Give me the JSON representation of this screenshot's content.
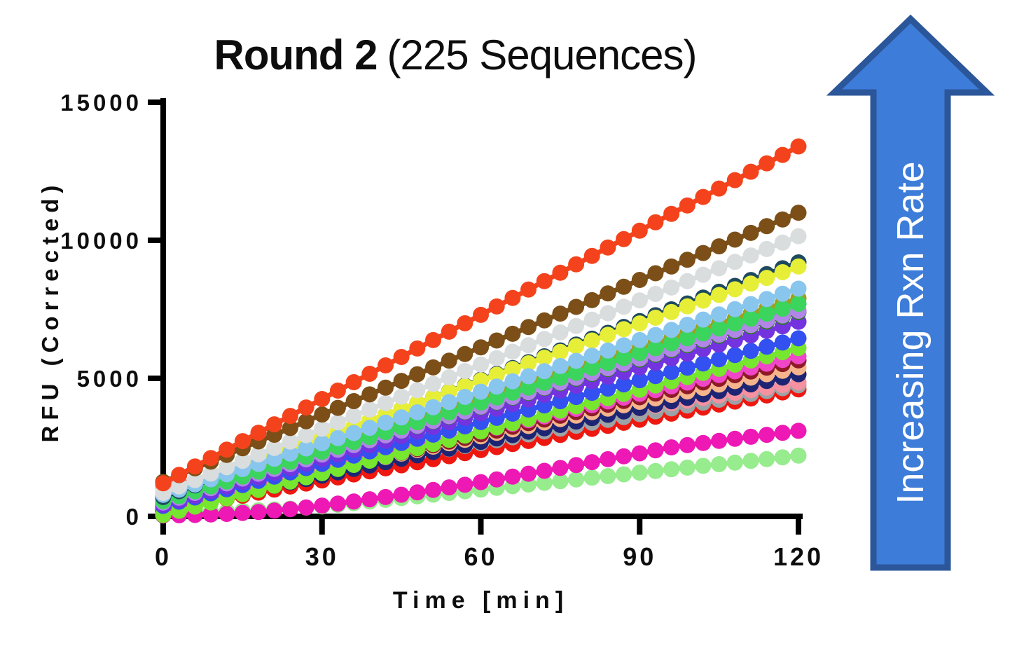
{
  "title": {
    "bold": "Round 2",
    "regular": "(225 Sequences)"
  },
  "axes": {
    "x": {
      "label": "Time [min]",
      "ticks": [
        0,
        30,
        60,
        90,
        120
      ],
      "range": [
        0,
        120
      ]
    },
    "y": {
      "label": "RFU (Corrected)",
      "ticks": [
        0,
        5000,
        10000,
        15000
      ],
      "range": [
        0,
        15000
      ]
    }
  },
  "annotation": {
    "arrow_label": "Increasing Rxn Rate",
    "arrow_fill": "#3D7CD9",
    "arrow_border": "#2B5699",
    "arrow_text_color": "#FFFFFF"
  },
  "colors": {
    "axis": "#000000",
    "background": "#FFFFFF"
  },
  "chart_data": {
    "type": "line",
    "title": "Round 2 (225 Sequences)",
    "xlabel": "Time [min]",
    "ylabel": "RFU (Corrected)",
    "xlim": [
      0,
      120
    ],
    "ylim": [
      0,
      15000
    ],
    "grid": false,
    "legend": "none",
    "marker": "circle",
    "sample_interval_min": 6,
    "source_marker_interval_min": 3,
    "x": [
      0,
      6,
      12,
      18,
      24,
      30,
      36,
      42,
      48,
      54,
      60,
      66,
      72,
      78,
      84,
      90,
      96,
      102,
      108,
      114,
      120
    ],
    "series_order_note": "array ordered slowest-to-fastest reaction rate; drawn in array order (later series on top)",
    "series": [
      {
        "name": "pale-green",
        "color": "#97EC8E",
        "values": [
          150,
          160,
          180,
          220,
          280,
          360,
          480,
          600,
          725,
          850,
          970,
          1095,
          1215,
          1340,
          1460,
          1585,
          1705,
          1830,
          1950,
          2075,
          2200
        ]
      },
      {
        "name": "magenta",
        "color": "#EE18B5",
        "values": [
          30,
          50,
          90,
          160,
          260,
          390,
          540,
          700,
          870,
          1050,
          1240,
          1440,
          1650,
          1860,
          2070,
          2285,
          2500,
          2660,
          2810,
          2955,
          3100
        ]
      },
      {
        "name": "red",
        "color": "#EE1810",
        "values": [
          200,
          420,
          640,
          860,
          1080,
          1300,
          1520,
          1740,
          1960,
          2180,
          2400,
          2620,
          2840,
          3060,
          3280,
          3500,
          3720,
          3940,
          4160,
          4380,
          4600
        ]
      },
      {
        "name": "gray",
        "color": "#9BA3A6",
        "values": [
          560,
          770,
          980,
          1190,
          1400,
          1610,
          1815,
          2025,
          2235,
          2445,
          2655,
          2865,
          3075,
          3285,
          3495,
          3705,
          3910,
          4120,
          4330,
          4540,
          4750
        ]
      },
      {
        "name": "salmon",
        "color": "#F591A0",
        "values": [
          1100,
          1290,
          1475,
          1665,
          1850,
          2040,
          2225,
          2415,
          2600,
          2790,
          2975,
          3165,
          3350,
          3540,
          3725,
          3915,
          4100,
          4290,
          4475,
          4665,
          4850
        ]
      },
      {
        "name": "navy",
        "color": "#1D2473",
        "values": [
          250,
          495,
          740,
          985,
          1230,
          1475,
          1720,
          1965,
          2210,
          2455,
          2700,
          2945,
          3190,
          3435,
          3680,
          3925,
          4170,
          4415,
          4660,
          4905,
          5150
        ]
      },
      {
        "name": "peach",
        "color": "#F5B48B",
        "values": [
          400,
          650,
          900,
          1150,
          1400,
          1650,
          1900,
          2150,
          2400,
          2650,
          2900,
          3150,
          3400,
          3650,
          3900,
          4150,
          4400,
          4650,
          4900,
          5150,
          5400
        ]
      },
      {
        "name": "dark-red",
        "color": "#8E1A28",
        "values": [
          300,
          570,
          835,
          1105,
          1370,
          1640,
          1905,
          2175,
          2440,
          2710,
          2975,
          3245,
          3510,
          3780,
          4045,
          4315,
          4580,
          4850,
          5115,
          5385,
          5650
        ]
      },
      {
        "name": "hot-pink",
        "color": "#F046C8",
        "values": [
          350,
          625,
          895,
          1170,
          1440,
          1715,
          1985,
          2260,
          2530,
          2805,
          3075,
          3350,
          3620,
          3895,
          4165,
          4440,
          4710,
          4985,
          5255,
          5530,
          5800
        ]
      },
      {
        "name": "chartreuse",
        "color": "#77E62E",
        "values": [
          50,
          355,
          655,
          960,
          1260,
          1565,
          1865,
          2170,
          2470,
          2775,
          3075,
          3380,
          3680,
          3985,
          4285,
          4590,
          4890,
          5195,
          5495,
          5800,
          6100
        ]
      },
      {
        "name": "royal-blue",
        "color": "#3350F0",
        "values": [
          380,
          685,
          985,
          1290,
          1595,
          1900,
          2200,
          2505,
          2810,
          3110,
          3415,
          3720,
          4020,
          4325,
          4630,
          4935,
          5235,
          5540,
          5845,
          6145,
          6450
        ]
      },
      {
        "name": "purple",
        "color": "#7334E0",
        "values": [
          420,
          750,
          1085,
          1415,
          1745,
          2080,
          2410,
          2740,
          3070,
          3405,
          3735,
          4065,
          4400,
          4730,
          5060,
          5395,
          5725,
          6055,
          6385,
          6720,
          7050
        ]
      },
      {
        "name": "dark-green",
        "color": "#2E7A1E",
        "values": [
          520,
          865,
          1210,
          1550,
          1895,
          2240,
          2585,
          2930,
          3270,
          3615,
          3960,
          4305,
          4650,
          4990,
          5335,
          5680,
          6025,
          6370,
          6710,
          7055,
          7400
        ]
      },
      {
        "name": "lavender",
        "color": "#B285E8",
        "values": [
          500,
          850,
          1195,
          1545,
          1890,
          2240,
          2585,
          2935,
          3280,
          3630,
          3975,
          4325,
          4670,
          5020,
          5365,
          5715,
          6060,
          6410,
          6755,
          7105,
          7450
        ]
      },
      {
        "name": "olive",
        "color": "#A0A01E",
        "values": [
          650,
          1015,
          1375,
          1740,
          2100,
          2465,
          2825,
          3190,
          3550,
          3915,
          4275,
          4640,
          5000,
          5365,
          5725,
          6090,
          6450,
          6815,
          7175,
          7540,
          7900
        ]
      },
      {
        "name": "green",
        "color": "#3BD45C",
        "values": [
          550,
          910,
          1265,
          1625,
          1980,
          2340,
          2695,
          3055,
          3410,
          3770,
          4125,
          4485,
          4840,
          5200,
          5555,
          5915,
          6270,
          6630,
          6985,
          7345,
          7700
        ]
      },
      {
        "name": "dark-teal",
        "color": "#1E4A5F",
        "values": [
          700,
          1125,
          1550,
          1975,
          2400,
          2825,
          3250,
          3675,
          4100,
          4525,
          4950,
          5375,
          5800,
          6225,
          6650,
          7075,
          7500,
          7925,
          8350,
          8775,
          9200
        ]
      },
      {
        "name": "yellow",
        "color": "#E6EE38",
        "values": [
          800,
          1215,
          1625,
          2040,
          2450,
          2865,
          3275,
          3690,
          4100,
          4515,
          4925,
          5340,
          5750,
          6165,
          6575,
          6990,
          7400,
          7815,
          8225,
          8640,
          9050
        ]
      },
      {
        "name": "sky-blue",
        "color": "#88C6EE",
        "values": [
          780,
          1155,
          1525,
          1900,
          2275,
          2650,
          3020,
          3395,
          3770,
          4140,
          4515,
          4890,
          5260,
          5635,
          6010,
          6385,
          6755,
          7130,
          7505,
          7875,
          8250
        ]
      },
      {
        "name": "light-gray",
        "color": "#D9DDDD",
        "values": [
          850,
          1315,
          1780,
          2245,
          2710,
          3175,
          3640,
          4105,
          4570,
          5035,
          5500,
          5965,
          6430,
          6895,
          7360,
          7825,
          8290,
          8755,
          9220,
          9685,
          10150
        ]
      },
      {
        "name": "brown",
        "color": "#7B4F17",
        "values": [
          1250,
          1740,
          2225,
          2715,
          3200,
          3690,
          4175,
          4665,
          5150,
          5640,
          6125,
          6615,
          7100,
          7590,
          8075,
          8565,
          9050,
          9540,
          10025,
          10515,
          11000
        ]
      },
      {
        "name": "red-orange",
        "color": "#F4431C",
        "values": [
          1200,
          1810,
          2420,
          3030,
          3640,
          4250,
          4860,
          5470,
          6080,
          6690,
          7300,
          7910,
          8520,
          9130,
          9740,
          10350,
          10960,
          11570,
          12180,
          12790,
          13400
        ]
      }
    ]
  }
}
